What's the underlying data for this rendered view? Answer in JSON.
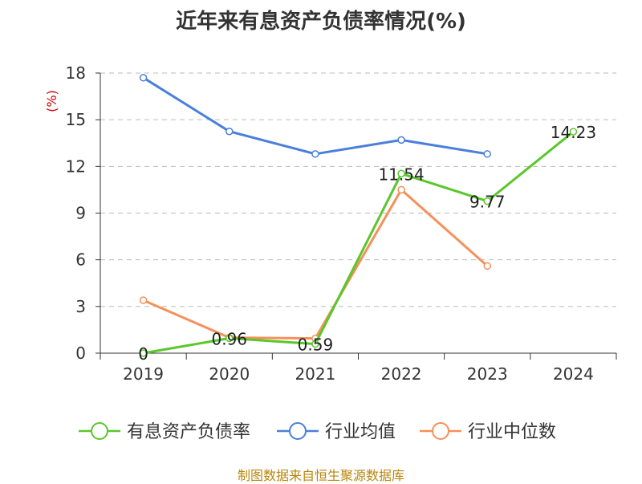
{
  "title": "近年来有息资产负债率情况(%)",
  "source": "制图数据来自恒生聚源数据库",
  "chart_data": {
    "type": "line",
    "title": "近年来有息资产负债率情况(%)",
    "xlabel": "",
    "ylabel": "(%)",
    "categories": [
      "2019",
      "2020",
      "2021",
      "2022",
      "2023",
      "2024"
    ],
    "ylim": [
      0,
      18
    ],
    "yticks": [
      0,
      3,
      6,
      9,
      12,
      15,
      18
    ],
    "grid": true,
    "legend_position": "bottom",
    "series": [
      {
        "name": "有息资产负债率",
        "color": "#5ac72a",
        "values": [
          0,
          0.96,
          0.59,
          11.54,
          9.77,
          14.23
        ],
        "labels": [
          "0",
          "0.96",
          "0.59",
          "11.54",
          "9.77",
          "14.23"
        ]
      },
      {
        "name": "行业均值",
        "color": "#4a7fdc",
        "values": [
          17.7,
          14.25,
          12.8,
          13.7,
          12.8,
          null
        ]
      },
      {
        "name": "行业中位数",
        "color": "#f5905a",
        "values": [
          3.4,
          1.0,
          0.95,
          10.5,
          5.6,
          null
        ]
      }
    ]
  }
}
